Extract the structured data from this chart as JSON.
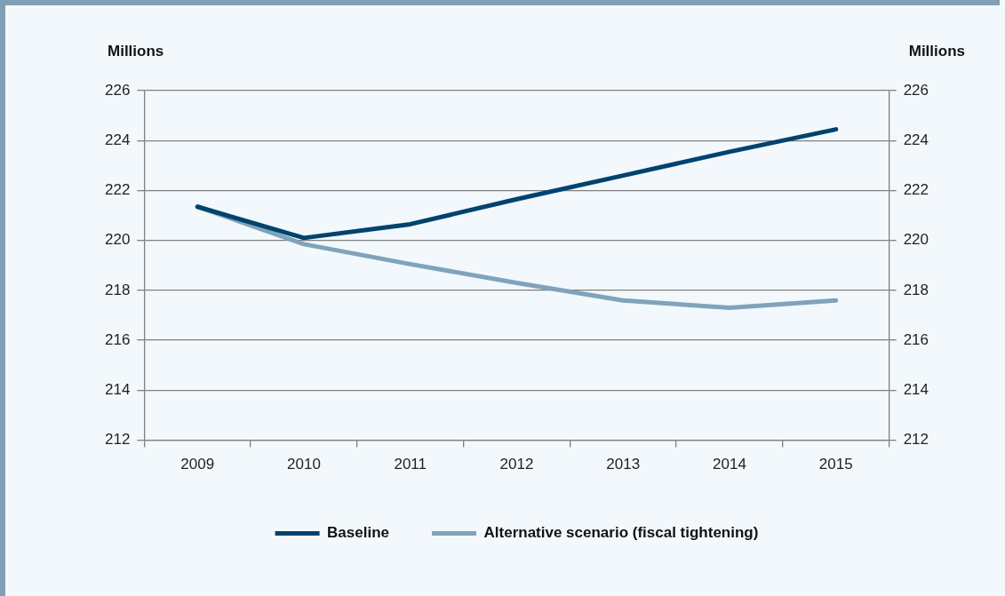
{
  "chart_data": {
    "type": "line",
    "ylabel": "Millions",
    "y2label": "Millions",
    "categories": [
      "2009",
      "2010",
      "2011",
      "2012",
      "2013",
      "2014",
      "2015"
    ],
    "series": [
      {
        "name": "Baseline",
        "color": "#00436e",
        "values": [
          221.35,
          220.1,
          220.65,
          221.65,
          222.6,
          223.55,
          224.45
        ]
      },
      {
        "name": "Alternative scenario (fiscal tightening)",
        "color": "#7fa3bb",
        "values": [
          221.35,
          219.85,
          219.05,
          218.3,
          217.6,
          217.3,
          217.6
        ]
      }
    ],
    "ylim": [
      212,
      226
    ],
    "yticks": [
      212,
      214,
      216,
      218,
      220,
      222,
      224,
      226
    ],
    "y2lim": [
      212,
      226
    ],
    "y2ticks": [
      212,
      214,
      216,
      218,
      220,
      222,
      224,
      226
    ],
    "grid": "y",
    "legend": "bottom",
    "marker": "none",
    "line_style": "solid"
  }
}
